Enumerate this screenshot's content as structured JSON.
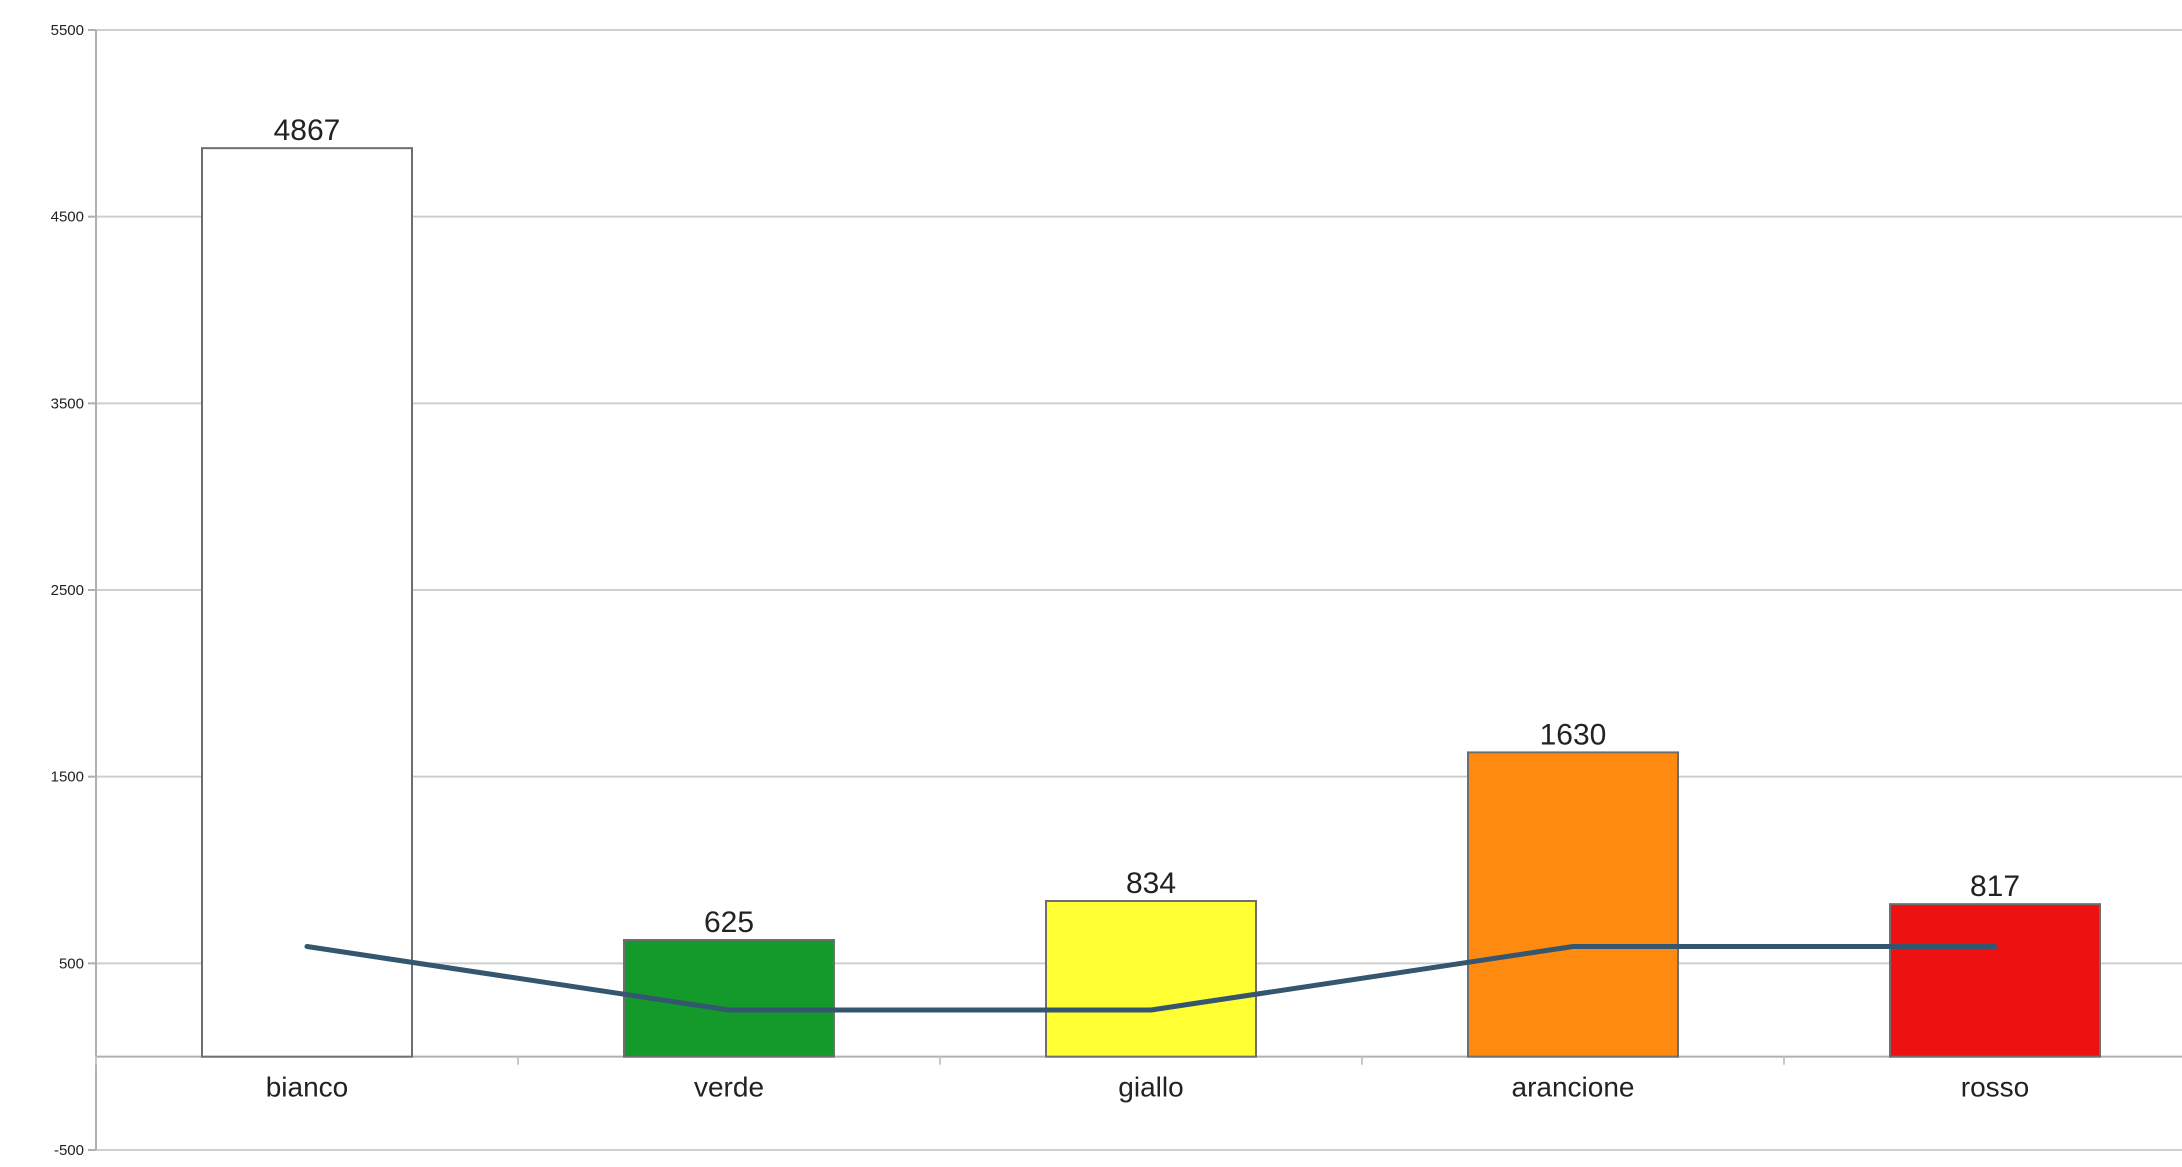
{
  "chart_data": {
    "type": "bar",
    "title": "",
    "xlabel": "",
    "ylabel": "",
    "categories": [
      "bianco",
      "verde",
      "giallo",
      "arancione",
      "rosso"
    ],
    "series": [
      {
        "type": "bar",
        "values": [
          4867,
          625,
          834,
          1630,
          817
        ],
        "colors": [
          "#ffffff",
          "#149a2b",
          "#ffff33",
          "#ff8a10",
          "#ee1111"
        ],
        "data_labels": [
          "4867",
          "625",
          "834",
          "1630",
          "817"
        ]
      },
      {
        "type": "line",
        "values": [
          590,
          250,
          250,
          590,
          590
        ],
        "color": "#34566e"
      }
    ],
    "ylim": [
      -500,
      5500
    ],
    "yticks": [
      -500,
      500,
      1500,
      2500,
      3500,
      4500,
      5500
    ],
    "ytick_labels": [
      "-500",
      "500",
      "1500",
      "2500",
      "3500",
      "4500",
      "5500"
    ],
    "grid": true,
    "legend": "none"
  }
}
